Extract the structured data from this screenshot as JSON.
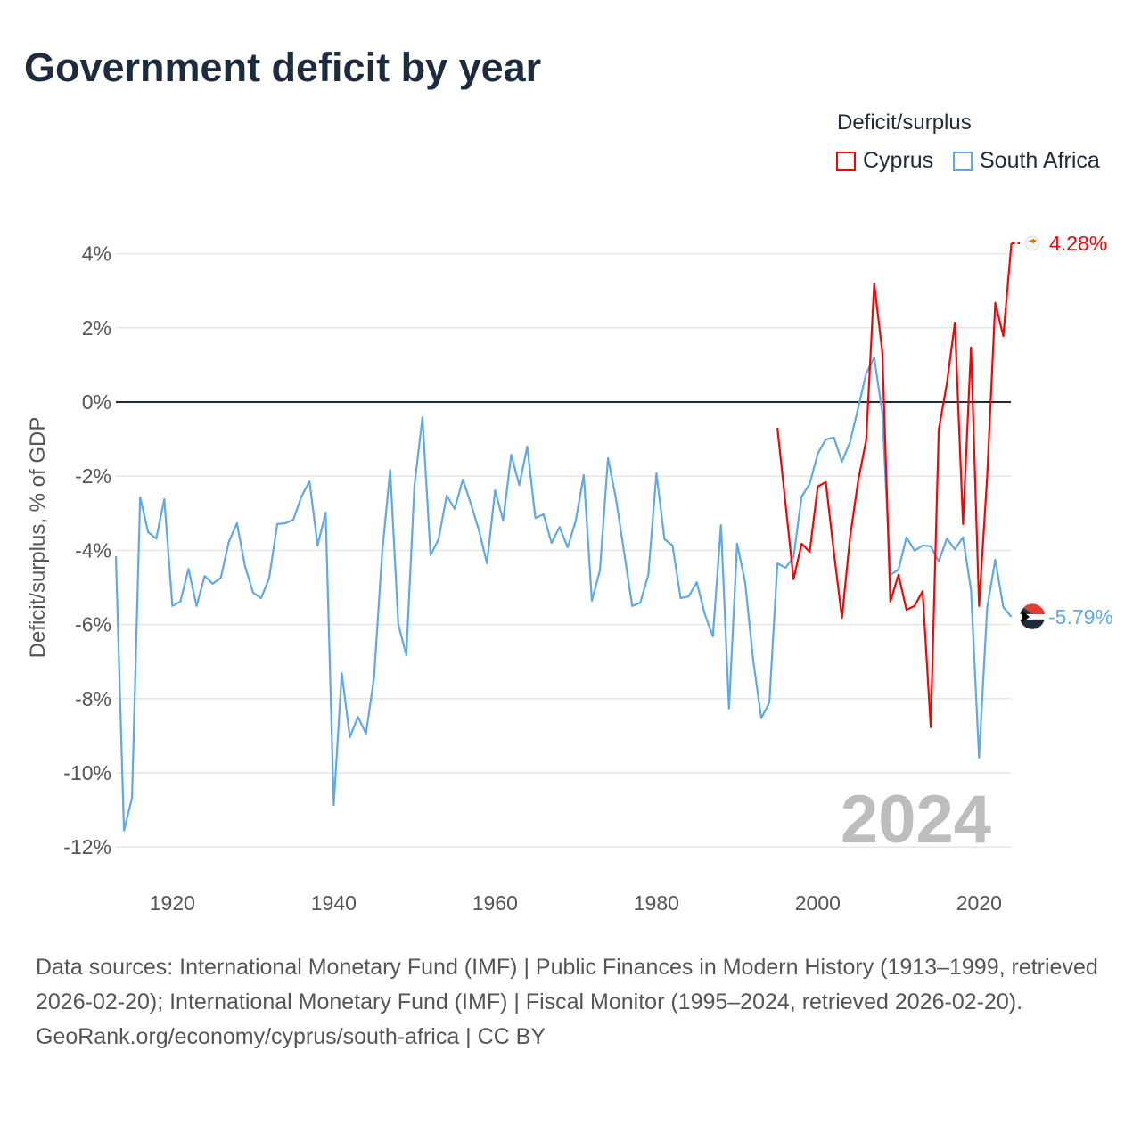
{
  "title": "Government deficit by year",
  "legend": {
    "title": "Deficit/surplus",
    "items": [
      {
        "label": "Cyprus",
        "color": "#ff0000"
      },
      {
        "label": "South Africa",
        "color": "#5ea8ec"
      }
    ]
  },
  "watermark_year": "2024",
  "footer": {
    "sources": "Data sources: International Monetary Fund (IMF) | Public Finances in Modern History (1913–1999, retrieved 2026-02-20); International Monetary Fund (IMF) | Fiscal Monitor (1995–2024, retrieved 2026-02-20).",
    "link": "GeoRank.org/economy/cyprus/south-africa | CC BY"
  },
  "chart_data": {
    "type": "line",
    "title": "Government deficit by year",
    "xlabel": "",
    "ylabel": "Deficit/surplus, % of GDP",
    "xlim": [
      1913,
      2024
    ],
    "ylim": [
      -12.5,
      4.5
    ],
    "x_ticks": [
      1920,
      1940,
      1960,
      1980,
      2000,
      2020
    ],
    "y_ticks": [
      4,
      2,
      0,
      -2,
      -4,
      -6,
      -8,
      -10,
      -12
    ],
    "y_tick_labels": [
      "4%",
      "2%",
      "0%",
      "-2%",
      "-4%",
      "-6%",
      "-8%",
      "-10%",
      "-12%"
    ],
    "grid": true,
    "legend_position": "top-right",
    "series": [
      {
        "name": "Cyprus",
        "color": "#ff0000",
        "start_year": 1995,
        "end_label": "4.28%",
        "values": [
          -0.7,
          -2.74,
          -4.78,
          -3.82,
          -4.04,
          -2.28,
          -2.16,
          -4.06,
          -5.82,
          -3.65,
          -2.14,
          -1.03,
          3.2,
          1.35,
          -5.38,
          -4.66,
          -5.6,
          -5.5,
          -5.1,
          -8.77,
          -0.75,
          0.5,
          2.14,
          -3.29,
          1.47,
          -5.5,
          -2.02,
          2.67,
          1.78,
          4.28
        ]
      },
      {
        "name": "South Africa",
        "color": "#5ea8ec",
        "start_year": 1913,
        "end_label": "-5.79%",
        "values": [
          -4.16,
          -11.56,
          -10.67,
          -2.57,
          -3.51,
          -3.68,
          -2.62,
          -5.5,
          -5.38,
          -4.5,
          -5.5,
          -4.69,
          -4.9,
          -4.74,
          -3.77,
          -3.27,
          -4.42,
          -5.14,
          -5.29,
          -4.74,
          -3.29,
          -3.27,
          -3.17,
          -2.55,
          -2.14,
          -3.87,
          -2.98,
          -10.87,
          -7.31,
          -9.04,
          -8.49,
          -8.94,
          -7.43,
          -4.06,
          -1.83,
          -5.99,
          -6.83,
          -2.26,
          -0.41,
          -4.13,
          -3.7,
          -2.52,
          -2.88,
          -2.09,
          -2.74,
          -3.46,
          -4.35,
          -2.38,
          -3.2,
          -1.42,
          -2.24,
          -1.2,
          -3.13,
          -3.03,
          -3.8,
          -3.37,
          -3.92,
          -3.2,
          -1.97,
          -5.36,
          -4.54,
          -1.51,
          -2.62,
          -4.06,
          -5.5,
          -5.41,
          -4.66,
          -1.92,
          -3.7,
          -3.87,
          -5.29,
          -5.24,
          -4.86,
          -5.72,
          -6.32,
          -3.32,
          -8.27,
          -3.82,
          -4.86,
          -6.97,
          -8.53,
          -8.1,
          -4.35,
          -4.47,
          -4.18,
          -2.55,
          -2.21,
          -1.39,
          -1.01,
          -0.96,
          -1.61,
          -1.08,
          -0.17,
          0.77,
          1.2,
          -0.29,
          -4.66,
          -4.52,
          -3.65,
          -4.01,
          -3.87,
          -3.89,
          -4.3,
          -3.68,
          -3.97,
          -3.65,
          -5.07,
          -9.59,
          -5.55,
          -4.25,
          -5.53,
          -5.79
        ]
      }
    ]
  }
}
